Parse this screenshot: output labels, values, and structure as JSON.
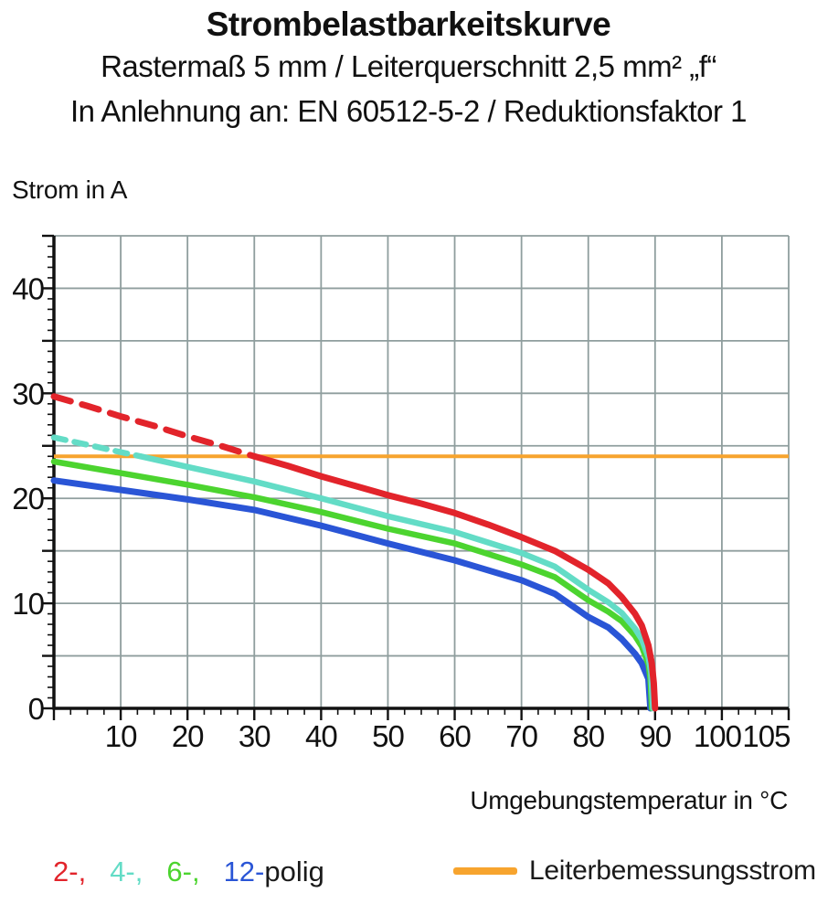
{
  "header": {
    "title": "Strombelastbarkeitskurve",
    "subtitle1": "Rastermaß 5 mm / Leiterquerschnitt 2,5 mm² „f“",
    "subtitle2": "In Anlehnung an: EN 60512-5-2 / Reduktionsfaktor 1"
  },
  "chart_data": {
    "type": "line",
    "title": "Strombelastbarkeitskurve",
    "xlabel": "Umgebungstemperatur in °C",
    "ylabel": "Strom in A",
    "xlim": [
      0,
      110
    ],
    "ylim": [
      0,
      45
    ],
    "grid": true,
    "grid_color": "#8f9e9e",
    "axis_color": "#111111",
    "x_grid_step": 10,
    "y_grid_step": 5,
    "x_minor_step": 2.5,
    "y_minor_step": 1,
    "x_ticks": [
      {
        "label": "10",
        "t": 10
      },
      {
        "label": "20",
        "t": 20
      },
      {
        "label": "30",
        "t": 30
      },
      {
        "label": "40",
        "t": 40
      },
      {
        "label": "50",
        "t": 50
      },
      {
        "label": "60",
        "t": 60
      },
      {
        "label": "70",
        "t": 70
      },
      {
        "label": "80",
        "t": 80
      },
      {
        "label": "90",
        "t": 90
      },
      {
        "label": "100",
        "t": 100,
        "dx": -5
      },
      {
        "label": "105",
        "t": 105,
        "dx": 12
      }
    ],
    "y_ticks": [
      0,
      10,
      20,
      30,
      40
    ],
    "reference_line": {
      "label": "Leiterbemessungsstrom",
      "value": 24,
      "color": "#F7A42E"
    },
    "legend_position": "bottom",
    "series": [
      {
        "name": "2-polig",
        "color": "#E2242B",
        "width": 7,
        "dash_until": 30,
        "dash": "19 13",
        "points": [
          [
            0,
            29.7
          ],
          [
            5,
            28.8
          ],
          [
            10,
            27.8
          ],
          [
            15,
            26.9
          ],
          [
            20,
            25.9
          ],
          [
            25,
            25.0
          ],
          [
            30,
            24.0
          ],
          [
            35,
            23.1
          ],
          [
            40,
            22.1
          ],
          [
            45,
            21.2
          ],
          [
            50,
            20.3
          ],
          [
            55,
            19.5
          ],
          [
            60,
            18.6
          ],
          [
            65,
            17.5
          ],
          [
            70,
            16.3
          ],
          [
            75,
            15.0
          ],
          [
            80,
            13.2
          ],
          [
            83,
            11.9
          ],
          [
            85,
            10.6
          ],
          [
            87,
            9.0
          ],
          [
            88,
            7.9
          ],
          [
            89,
            6.0
          ],
          [
            89.5,
            4.3
          ],
          [
            89.8,
            2.4
          ],
          [
            90,
            0
          ]
        ]
      },
      {
        "name": "4-polig",
        "color": "#63DCC6",
        "width": 6.5,
        "dash_until": 13,
        "dash": "13 10",
        "points": [
          [
            0,
            25.8
          ],
          [
            5,
            25.1
          ],
          [
            10,
            24.4
          ],
          [
            13,
            24.0
          ],
          [
            20,
            23.0
          ],
          [
            30,
            21.6
          ],
          [
            40,
            20.0
          ],
          [
            50,
            18.3
          ],
          [
            60,
            16.8
          ],
          [
            70,
            14.8
          ],
          [
            75,
            13.5
          ],
          [
            80,
            11.3
          ],
          [
            83,
            10.1
          ],
          [
            85,
            9.1
          ],
          [
            87,
            7.6
          ],
          [
            88,
            6.6
          ],
          [
            89,
            4.9
          ],
          [
            89.4,
            3.4
          ],
          [
            89.7,
            0
          ]
        ]
      },
      {
        "name": "6-polig",
        "color": "#4CD42F",
        "width": 6.5,
        "dash_until": 0,
        "dash": "",
        "points": [
          [
            0,
            23.5
          ],
          [
            10,
            22.4
          ],
          [
            20,
            21.3
          ],
          [
            30,
            20.1
          ],
          [
            40,
            18.7
          ],
          [
            50,
            17.1
          ],
          [
            60,
            15.7
          ],
          [
            70,
            13.7
          ],
          [
            75,
            12.5
          ],
          [
            80,
            10.3
          ],
          [
            83,
            9.2
          ],
          [
            85,
            8.3
          ],
          [
            87,
            6.9
          ],
          [
            88,
            5.9
          ],
          [
            89,
            4.2
          ],
          [
            89.3,
            2.8
          ],
          [
            89.5,
            0
          ]
        ]
      },
      {
        "name": "12-polig",
        "color": "#2A55D6",
        "width": 7,
        "dash_until": 0,
        "dash": "",
        "points": [
          [
            0,
            21.7
          ],
          [
            10,
            20.8
          ],
          [
            20,
            19.9
          ],
          [
            30,
            18.9
          ],
          [
            40,
            17.4
          ],
          [
            50,
            15.7
          ],
          [
            60,
            14.1
          ],
          [
            70,
            12.2
          ],
          [
            75,
            10.9
          ],
          [
            80,
            8.7
          ],
          [
            83,
            7.7
          ],
          [
            85,
            6.6
          ],
          [
            87,
            5.2
          ],
          [
            88,
            4.3
          ],
          [
            89,
            2.8
          ],
          [
            89.3,
            0
          ]
        ]
      }
    ]
  },
  "legend": {
    "pole_items": [
      {
        "label": "2-,",
        "color": "#E2242B"
      },
      {
        "label": "4-,",
        "color": "#63DCC6"
      },
      {
        "label": "6-,",
        "color": "#4CD42F"
      },
      {
        "label": "12-",
        "color": "#2A55D6"
      }
    ],
    "pole_suffix": "polig",
    "reference_label": "Leiterbemessungsstrom",
    "reference_color": "#F7A42E"
  }
}
